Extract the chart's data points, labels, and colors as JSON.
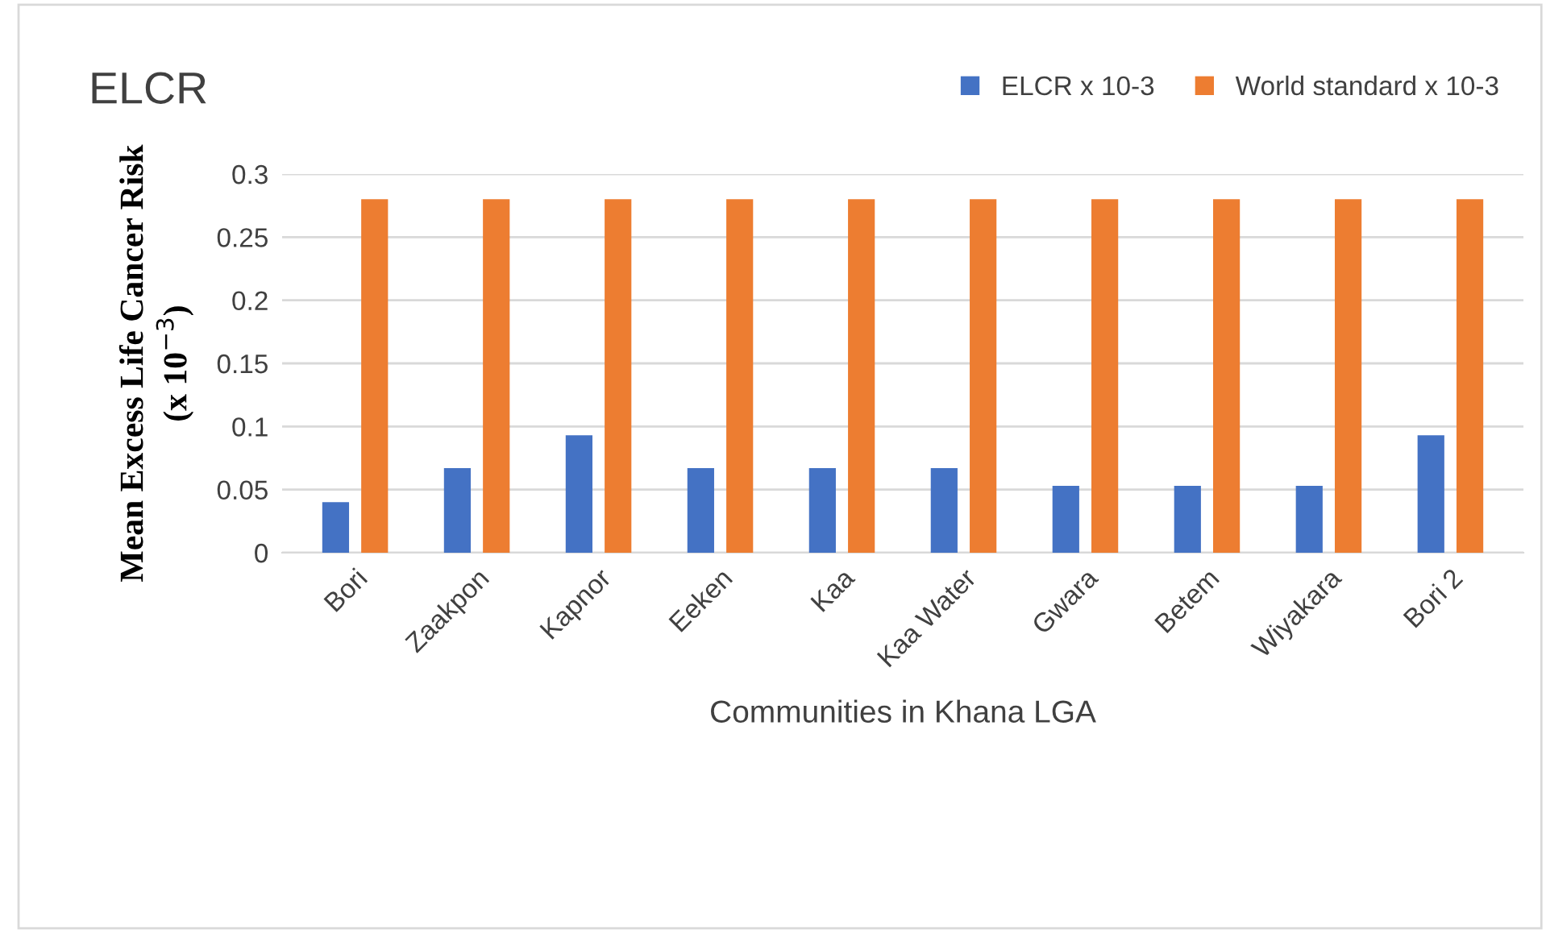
{
  "chart_data": {
    "type": "bar",
    "title": "ELCR",
    "xlabel": "Communities in Khana LGA",
    "ylabel": "Mean Excess Life Cancer Risk\n(x 10$^{−3}$)",
    "categories": [
      "Bori",
      "Zaakpon",
      "Kapnor",
      "Eeken",
      "Kaa",
      "Kaa Water",
      "Gwara",
      "Betem",
      "Wiyakara",
      "Bori 2"
    ],
    "series": [
      {
        "name": "ELCR x 10-3",
        "color": "#4472c4",
        "values": [
          0.04,
          0.067,
          0.093,
          0.067,
          0.067,
          0.067,
          0.053,
          0.053,
          0.053,
          0.093
        ]
      },
      {
        "name": "World standard x 10-3",
        "color": "#ed7d31",
        "values": [
          0.28,
          0.28,
          0.28,
          0.28,
          0.28,
          0.28,
          0.28,
          0.28,
          0.28,
          0.28
        ]
      }
    ],
    "ylim": [
      0,
      0.3
    ],
    "yticks": [
      0,
      0.05,
      0.1,
      0.15,
      0.2,
      0.25,
      0.3
    ],
    "grid": "y",
    "legend": "top right"
  }
}
